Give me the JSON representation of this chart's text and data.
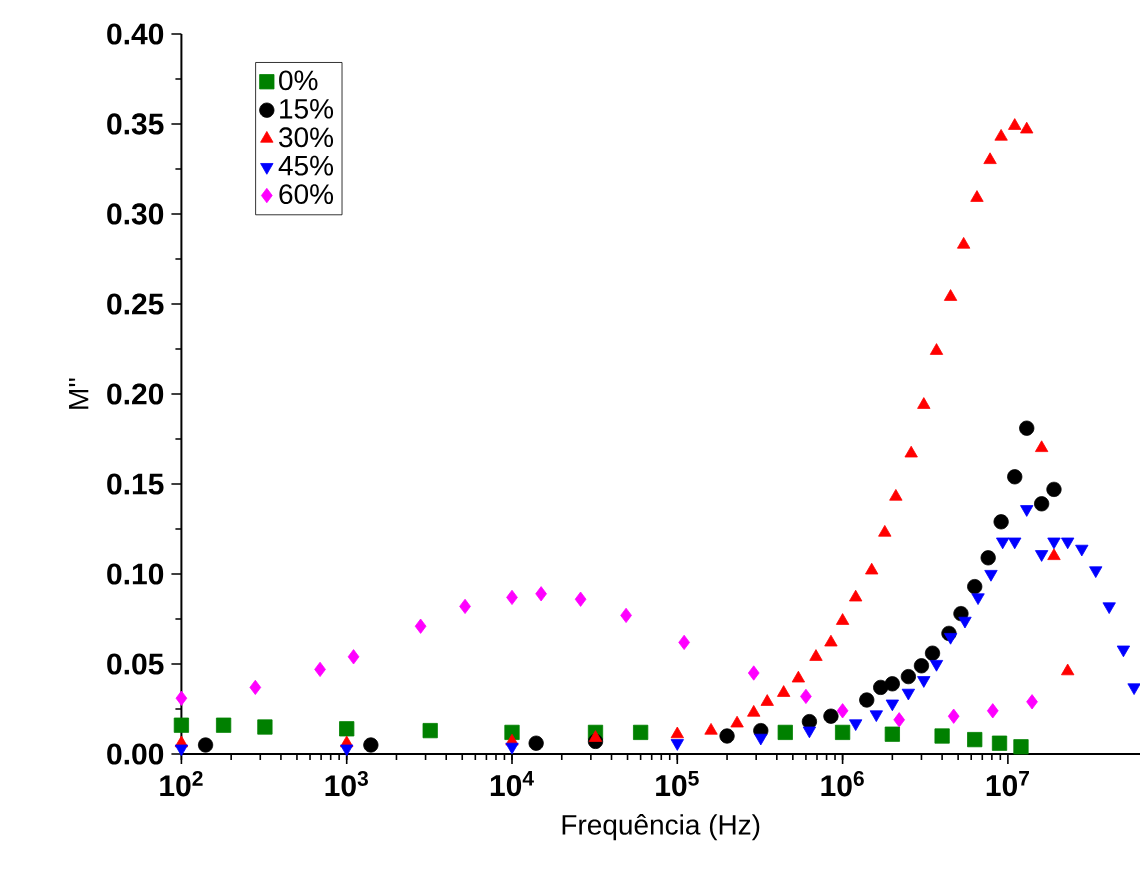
{
  "chart_data": {
    "type": "scatter",
    "xlabel": "Frequência (Hz)",
    "ylabel": "M''",
    "log": "x",
    "xlim": [
      100,
      63000000.0
    ],
    "ylim": [
      0,
      0.4
    ],
    "xticks": [
      {
        "value": 100,
        "label": "10$^{2}$"
      },
      {
        "value": 1000,
        "label": "10$^{3}$"
      },
      {
        "value": 10000,
        "label": "10$^{4}$"
      },
      {
        "value": 100000,
        "label": "10$^{5}$"
      },
      {
        "value": 1000000,
        "label": "10$^{6}$"
      },
      {
        "value": 10000000,
        "label": "10$^{7}$"
      }
    ],
    "yticks": [
      {
        "value": 0,
        "label": "0.00"
      },
      {
        "value": 0.05,
        "label": "0.05"
      },
      {
        "value": 0.1,
        "label": "0.10"
      },
      {
        "value": 0.15,
        "label": "0.15"
      },
      {
        "value": 0.2,
        "label": "0.20"
      },
      {
        "value": 0.25,
        "label": "0.25"
      },
      {
        "value": 0.3,
        "label": "0.30"
      },
      {
        "value": 0.35,
        "label": "0.35"
      },
      {
        "value": 0.4,
        "label": "0.40"
      }
    ],
    "legend": "top left",
    "series": [
      {
        "name": "0%",
        "color": "#008000",
        "marker": "square",
        "x": [
          100,
          180,
          320,
          1000,
          3200,
          10000,
          32000,
          60000,
          450000,
          1000000,
          2000000,
          4000000,
          6300000,
          8900000,
          12000000
        ],
        "values": [
          0.016,
          0.016,
          0.015,
          0.014,
          0.013,
          0.012,
          0.012,
          0.012,
          0.012,
          0.012,
          0.011,
          0.01,
          0.008,
          0.006,
          0.004
        ]
      },
      {
        "name": "15%",
        "color": "#000000",
        "marker": "circle",
        "x": [
          140,
          1400,
          14000,
          32000,
          200000,
          320000,
          630000,
          850000,
          1400000,
          1700000,
          2000000,
          2500000,
          3000000,
          3500000,
          4400000,
          5200000,
          6300000,
          7600000,
          9100000,
          11000000,
          13000000,
          16000000,
          19000000
        ],
        "values": [
          0.005,
          0.005,
          0.006,
          0.007,
          0.01,
          0.013,
          0.018,
          0.021,
          0.03,
          0.037,
          0.039,
          0.043,
          0.049,
          0.056,
          0.067,
          0.078,
          0.093,
          0.109,
          0.129,
          0.154,
          0.181,
          0.139,
          0.147
        ]
      },
      {
        "name": "30%",
        "color": "#ff0000",
        "marker": "triangle",
        "x": [
          100,
          1000,
          10000,
          32000,
          100000,
          160000,
          230000,
          290000,
          350000,
          440000,
          540000,
          690000,
          850000,
          1000000,
          1200000,
          1500000,
          1800000,
          2100000,
          2600000,
          3100000,
          3700000,
          4500000,
          5400000,
          6500000,
          7800000,
          9100000,
          11000000,
          13000000,
          16000000,
          19000000,
          23000000
        ],
        "values": [
          0.006,
          0.006,
          0.007,
          0.009,
          0.011,
          0.013,
          0.017,
          0.023,
          0.029,
          0.034,
          0.042,
          0.054,
          0.062,
          0.074,
          0.087,
          0.102,
          0.123,
          0.143,
          0.167,
          0.194,
          0.224,
          0.254,
          0.283,
          0.309,
          0.33,
          0.343,
          0.349,
          0.347,
          0.17,
          0.11,
          0.046
        ]
      },
      {
        "name": "45%",
        "color": "#0000ff",
        "marker": "triangle-down",
        "x": [
          100,
          1000,
          10000,
          100000,
          320000,
          630000,
          1200000,
          1600000,
          2000000,
          2500000,
          3100000,
          3700000,
          4500000,
          5500000,
          6600000,
          7900000,
          9300000,
          11000000,
          13000000,
          16000000,
          19000000,
          23000000,
          28000000,
          34000000,
          41000000,
          50000000,
          58000000
        ],
        "values": [
          0.003,
          0.003,
          0.004,
          0.006,
          0.009,
          0.013,
          0.017,
          0.022,
          0.028,
          0.034,
          0.041,
          0.05,
          0.065,
          0.074,
          0.087,
          0.1,
          0.118,
          0.118,
          0.136,
          0.111,
          0.118,
          0.118,
          0.114,
          0.102,
          0.082,
          0.058,
          0.037
        ]
      },
      {
        "name": "60%",
        "color": "#ff00ff",
        "marker": "diamond",
        "x": [
          100,
          280,
          690,
          1100,
          2800,
          5200,
          10000,
          15000,
          26000,
          49000,
          110000,
          290000,
          600000,
          1000000,
          2200000,
          4700000,
          8100000,
          14000000
        ],
        "values": [
          0.031,
          0.037,
          0.047,
          0.054,
          0.071,
          0.082,
          0.087,
          0.089,
          0.086,
          0.077,
          0.062,
          0.045,
          0.032,
          0.024,
          0.019,
          0.021,
          0.024,
          0.029
        ]
      }
    ]
  }
}
